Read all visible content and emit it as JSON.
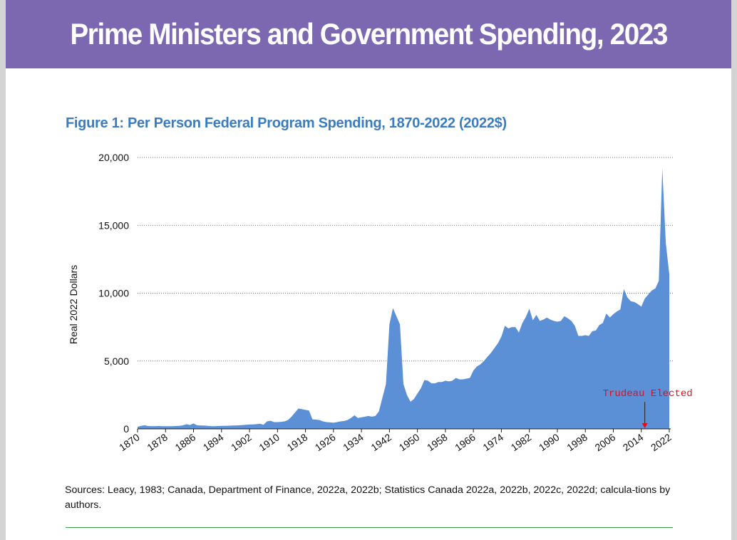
{
  "header": {
    "title": "Prime Ministers and Government Spending, 2023"
  },
  "figure": {
    "title": "Figure 1: Per Person Federal Program Spending, 1870-2022 (2022$)",
    "sources": "Sources: Leacy, 1983; Canada, Department of Finance, 2022a, 2022b; Statistics Canada 2022a, 2022b, 2022c, 2022d; calcula-tions by authors."
  },
  "colors": {
    "banner": "#7b68b0",
    "figure_title": "#3a7cc0",
    "area_fill": "#5b8fd6",
    "annotation": "#e0101a",
    "rule": "#3f9a4e"
  },
  "chart_data": {
    "type": "area",
    "title": "Figure 1: Per Person Federal Program Spending, 1870-2022 (2022$)",
    "xlabel": "",
    "ylabel": "Real 2022 Dollars",
    "xlim": [
      1870,
      2022
    ],
    "ylim": [
      0,
      20000
    ],
    "y_ticks": [
      0,
      5000,
      10000,
      15000,
      20000
    ],
    "y_tick_labels": [
      "0",
      "5,000",
      "10,000",
      "15,000",
      "20,000"
    ],
    "x_ticks": [
      1870,
      1878,
      1886,
      1894,
      1902,
      1910,
      1918,
      1926,
      1934,
      1942,
      1950,
      1958,
      1966,
      1974,
      1982,
      1990,
      1998,
      2006,
      2014,
      2022
    ],
    "grid": "horizontal dotted",
    "series": [
      {
        "values": [
          [
            1870,
            150
          ],
          [
            1871,
            220
          ],
          [
            1872,
            260
          ],
          [
            1873,
            210
          ],
          [
            1874,
            200
          ],
          [
            1875,
            200
          ],
          [
            1876,
            210
          ],
          [
            1877,
            200
          ],
          [
            1878,
            200
          ],
          [
            1879,
            200
          ],
          [
            1880,
            200
          ],
          [
            1881,
            210
          ],
          [
            1882,
            220
          ],
          [
            1883,
            260
          ],
          [
            1884,
            340
          ],
          [
            1885,
            280
          ],
          [
            1886,
            400
          ],
          [
            1887,
            260
          ],
          [
            1888,
            250
          ],
          [
            1889,
            240
          ],
          [
            1890,
            220
          ],
          [
            1891,
            200
          ],
          [
            1892,
            200
          ],
          [
            1893,
            210
          ],
          [
            1894,
            220
          ],
          [
            1895,
            220
          ],
          [
            1896,
            230
          ],
          [
            1897,
            240
          ],
          [
            1898,
            250
          ],
          [
            1899,
            260
          ],
          [
            1900,
            280
          ],
          [
            1901,
            300
          ],
          [
            1902,
            320
          ],
          [
            1903,
            330
          ],
          [
            1904,
            350
          ],
          [
            1905,
            380
          ],
          [
            1906,
            300
          ],
          [
            1907,
            550
          ],
          [
            1908,
            600
          ],
          [
            1909,
            500
          ],
          [
            1910,
            500
          ],
          [
            1911,
            520
          ],
          [
            1912,
            550
          ],
          [
            1913,
            650
          ],
          [
            1914,
            900
          ],
          [
            1915,
            1200
          ],
          [
            1916,
            1500
          ],
          [
            1917,
            1450
          ],
          [
            1918,
            1400
          ],
          [
            1919,
            1350
          ],
          [
            1920,
            700
          ],
          [
            1921,
            680
          ],
          [
            1922,
            650
          ],
          [
            1923,
            550
          ],
          [
            1924,
            500
          ],
          [
            1925,
            480
          ],
          [
            1926,
            450
          ],
          [
            1927,
            500
          ],
          [
            1928,
            550
          ],
          [
            1929,
            580
          ],
          [
            1930,
            650
          ],
          [
            1931,
            800
          ],
          [
            1932,
            1000
          ],
          [
            1933,
            800
          ],
          [
            1934,
            850
          ],
          [
            1935,
            900
          ],
          [
            1936,
            950
          ],
          [
            1937,
            900
          ],
          [
            1938,
            950
          ],
          [
            1939,
            1300
          ],
          [
            1940,
            2300
          ],
          [
            1941,
            3300
          ],
          [
            1942,
            7700
          ],
          [
            1943,
            8900
          ],
          [
            1944,
            8300
          ],
          [
            1945,
            7700
          ],
          [
            1946,
            3300
          ],
          [
            1947,
            2500
          ],
          [
            1948,
            2000
          ],
          [
            1949,
            2200
          ],
          [
            1950,
            2600
          ],
          [
            1951,
            3000
          ],
          [
            1952,
            3600
          ],
          [
            1953,
            3550
          ],
          [
            1954,
            3350
          ],
          [
            1955,
            3350
          ],
          [
            1956,
            3450
          ],
          [
            1957,
            3450
          ],
          [
            1958,
            3550
          ],
          [
            1959,
            3500
          ],
          [
            1960,
            3550
          ],
          [
            1961,
            3750
          ],
          [
            1962,
            3650
          ],
          [
            1963,
            3650
          ],
          [
            1964,
            3700
          ],
          [
            1965,
            3750
          ],
          [
            1966,
            4300
          ],
          [
            1967,
            4600
          ],
          [
            1968,
            4750
          ],
          [
            1969,
            5000
          ],
          [
            1970,
            5300
          ],
          [
            1971,
            5600
          ],
          [
            1972,
            5950
          ],
          [
            1973,
            6300
          ],
          [
            1974,
            6800
          ],
          [
            1975,
            7600
          ],
          [
            1976,
            7400
          ],
          [
            1977,
            7500
          ],
          [
            1978,
            7500
          ],
          [
            1979,
            7100
          ],
          [
            1980,
            7800
          ],
          [
            1981,
            8250
          ],
          [
            1982,
            8850
          ],
          [
            1983,
            8000
          ],
          [
            1984,
            8400
          ],
          [
            1985,
            7950
          ],
          [
            1986,
            8050
          ],
          [
            1987,
            8200
          ],
          [
            1988,
            8050
          ],
          [
            1989,
            7950
          ],
          [
            1990,
            7900
          ],
          [
            1991,
            7950
          ],
          [
            1992,
            8300
          ],
          [
            1993,
            8150
          ],
          [
            1994,
            7950
          ],
          [
            1995,
            7600
          ],
          [
            1996,
            6850
          ],
          [
            1997,
            6850
          ],
          [
            1998,
            6900
          ],
          [
            1999,
            6850
          ],
          [
            2000,
            7200
          ],
          [
            2001,
            7250
          ],
          [
            2002,
            7650
          ],
          [
            2003,
            7800
          ],
          [
            2004,
            8500
          ],
          [
            2005,
            8200
          ],
          [
            2006,
            8450
          ],
          [
            2007,
            8650
          ],
          [
            2008,
            8800
          ],
          [
            2009,
            10300
          ],
          [
            2010,
            9700
          ],
          [
            2011,
            9400
          ],
          [
            2012,
            9350
          ],
          [
            2013,
            9200
          ],
          [
            2014,
            9000
          ],
          [
            2015,
            9600
          ],
          [
            2016,
            9900
          ],
          [
            2017,
            10200
          ],
          [
            2018,
            10350
          ],
          [
            2019,
            10900
          ],
          [
            2020,
            19200
          ],
          [
            2021,
            13700
          ],
          [
            2022,
            11400
          ]
        ]
      }
    ],
    "annotations": [
      {
        "text": "Trudeau Elected",
        "x": 2015,
        "y": 2300,
        "arrow_to_y": 0
      }
    ]
  }
}
